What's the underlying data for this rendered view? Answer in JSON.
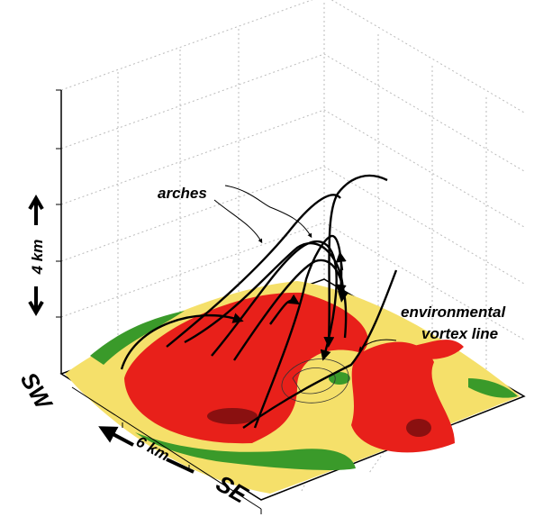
{
  "labels": {
    "arches": "arches",
    "vortex_line_1": "environmental",
    "vortex_line_2": "vortex line",
    "height_scale": "4 km",
    "width_scale": "6 km",
    "corner_left": "SW",
    "corner_front": "SE"
  }
}
